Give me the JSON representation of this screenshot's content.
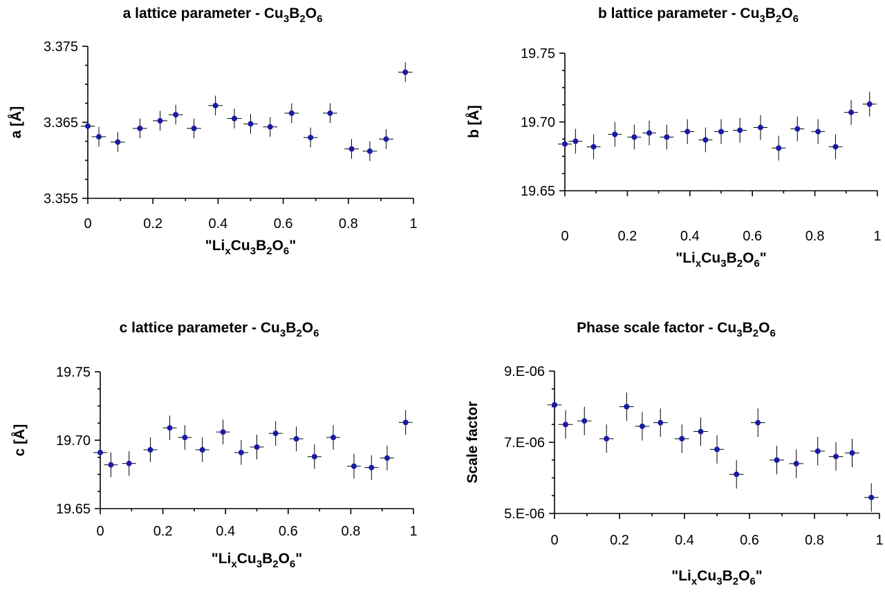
{
  "chart_data": [
    {
      "type": "scatter",
      "title": {
        "pre": "a lattice parameter - Cu",
        "s1": "3",
        "mid1": "B",
        "s2": "2",
        "mid2": "O",
        "s3": "6"
      },
      "ylabel": "a [Å]",
      "xlabel": {
        "pre": "\"Li",
        "s0": "x",
        "mid0": "Cu",
        "s1": "3",
        "mid1": "B",
        "s2": "2",
        "mid2": "O",
        "s3": "6",
        "post": "\""
      },
      "xlim": [
        0,
        1
      ],
      "ylim": [
        3.355,
        3.375
      ],
      "xticks": [
        "0",
        "0.2",
        "0.4",
        "0.6",
        "0.8",
        "1"
      ],
      "xtick_values": [
        0,
        0.2,
        0.4,
        0.6,
        0.8,
        1
      ],
      "yticks": [
        "3.355",
        "3.365",
        "3.375"
      ],
      "ytick_values": [
        3.355,
        3.365,
        3.375
      ],
      "x": [
        0,
        0.034,
        0.092,
        0.16,
        0.222,
        0.27,
        0.326,
        0.392,
        0.45,
        0.5,
        0.56,
        0.626,
        0.684,
        0.744,
        0.81,
        0.866,
        0.916,
        0.975
      ],
      "y": [
        3.3645,
        3.3631,
        3.3624,
        3.3642,
        3.3652,
        3.366,
        3.3642,
        3.3672,
        3.3655,
        3.3648,
        3.3644,
        3.3662,
        3.363,
        3.3662,
        3.3615,
        3.3612,
        3.3628,
        3.3716
      ],
      "yerr": 0.0013,
      "xerr": 0.022
    },
    {
      "type": "scatter",
      "title": {
        "pre": "b lattice parameter - Cu",
        "s1": "3",
        "mid1": "B",
        "s2": "2",
        "mid2": "O",
        "s3": "6"
      },
      "ylabel": "b [Å]",
      "xlabel": {
        "pre": "\"Li",
        "s0": "x",
        "mid0": "Cu",
        "s1": "3",
        "mid1": "B",
        "s2": "2",
        "mid2": "O",
        "s3": "6",
        "post": "\""
      },
      "xlim": [
        0,
        1
      ],
      "ylim": [
        19.65,
        19.75
      ],
      "xticks": [
        "0",
        "0.2",
        "0.4",
        "0.6",
        "0.8",
        "1"
      ],
      "xtick_values": [
        0,
        0.2,
        0.4,
        0.6,
        0.8,
        1
      ],
      "yticks": [
        "19.65",
        "19.70",
        "19.75"
      ],
      "ytick_values": [
        19.65,
        19.7,
        19.75
      ],
      "x": [
        0,
        0.034,
        0.092,
        0.16,
        0.222,
        0.27,
        0.326,
        0.392,
        0.45,
        0.5,
        0.56,
        0.626,
        0.684,
        0.744,
        0.81,
        0.866,
        0.916,
        0.975
      ],
      "y": [
        19.684,
        19.686,
        19.682,
        19.691,
        19.689,
        19.692,
        19.689,
        19.693,
        19.687,
        19.693,
        19.694,
        19.696,
        19.681,
        19.695,
        19.693,
        19.682,
        19.707,
        19.713
      ],
      "yerr": 0.009,
      "xerr": 0.022
    },
    {
      "type": "scatter",
      "title": {
        "pre": "c lattice parameter - Cu",
        "s1": "3",
        "mid1": "B",
        "s2": "2",
        "mid2": "O",
        "s3": "6"
      },
      "ylabel": "c [Å]",
      "xlabel": {
        "pre": "\"Li",
        "s0": "x",
        "mid0": "Cu",
        "s1": "3",
        "mid1": "B",
        "s2": "2",
        "mid2": "O",
        "s3": "6",
        "post": "\""
      },
      "xlim": [
        0,
        1
      ],
      "ylim": [
        19.65,
        19.75
      ],
      "xticks": [
        "0",
        "0.2",
        "0.4",
        "0.6",
        "0.8",
        "1"
      ],
      "xtick_values": [
        0,
        0.2,
        0.4,
        0.6,
        0.8,
        1
      ],
      "yticks": [
        "19.65",
        "19.70",
        "19.75"
      ],
      "ytick_values": [
        19.65,
        19.7,
        19.75
      ],
      "x": [
        0,
        0.034,
        0.092,
        0.16,
        0.222,
        0.27,
        0.326,
        0.392,
        0.45,
        0.5,
        0.56,
        0.626,
        0.684,
        0.744,
        0.81,
        0.866,
        0.916,
        0.975
      ],
      "y": [
        19.691,
        19.682,
        19.683,
        19.693,
        19.709,
        19.702,
        19.693,
        19.706,
        19.691,
        19.695,
        19.705,
        19.701,
        19.688,
        19.702,
        19.681,
        19.68,
        19.687,
        19.713
      ],
      "yerr": 0.009,
      "xerr": 0.022
    },
    {
      "type": "scatter",
      "title": {
        "pre": "Phase scale factor - Cu",
        "s1": "3",
        "mid1": "B",
        "s2": "2",
        "mid2": "O",
        "s3": "6"
      },
      "ylabel": "Scale factor",
      "xlabel": {
        "pre": "\"Li",
        "s0": "x",
        "mid0": "Cu",
        "s1": "3",
        "mid1": "B",
        "s2": "2",
        "mid2": "O",
        "s3": "6",
        "post": "\""
      },
      "xlim": [
        0,
        1
      ],
      "ylim": [
        5e-06,
        9e-06
      ],
      "xticks": [
        "0",
        "0.2",
        "0.4",
        "0.6",
        "0.8",
        "1"
      ],
      "xtick_values": [
        0,
        0.2,
        0.4,
        0.6,
        0.8,
        1
      ],
      "yticks": [
        "5.E-06",
        "7.E-06",
        "9.E-06"
      ],
      "ytick_values": [
        5e-06,
        7e-06,
        9e-06
      ],
      "x": [
        0,
        0.034,
        0.092,
        0.16,
        0.222,
        0.27,
        0.326,
        0.392,
        0.45,
        0.5,
        0.56,
        0.626,
        0.684,
        0.744,
        0.81,
        0.866,
        0.916,
        0.975
      ],
      "y": [
        8.05e-06,
        7.5e-06,
        7.6e-06,
        7.1e-06,
        8e-06,
        7.45e-06,
        7.55e-06,
        7.1e-06,
        7.3e-06,
        6.8e-06,
        6.1e-06,
        7.55e-06,
        6.5e-06,
        6.4e-06,
        6.75e-06,
        6.6e-06,
        6.7e-06,
        5.45e-06
      ],
      "yerr": 4e-07,
      "xerr": 0.022
    }
  ],
  "colors": {
    "points": "#1a1aa6",
    "axes": "#000000"
  }
}
